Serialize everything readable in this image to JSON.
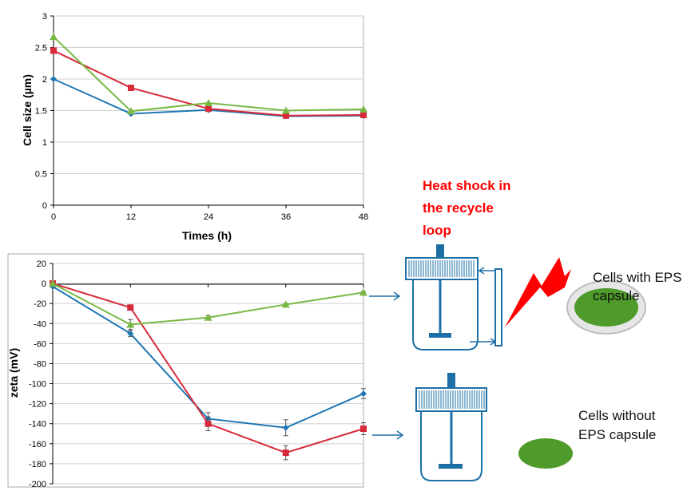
{
  "colors": {
    "blue": "#1F77B4",
    "red": "#D62A3A",
    "green": "#77B943",
    "reactor": "#1E6FA6",
    "heat_text": "#FF0000",
    "bolt": "#FF0000",
    "cell_green": "#4E9A2A",
    "grid": "#D0D0D0"
  },
  "chart_data": [
    {
      "type": "line",
      "title": "",
      "xlabel": "Times (h)",
      "ylabel": "Cell size (µm)",
      "x": [
        0,
        12,
        24,
        36,
        48
      ],
      "xlim": [
        0,
        48
      ],
      "ylim": [
        0,
        3
      ],
      "xticks": [
        "0",
        "12",
        "24",
        "36",
        "48"
      ],
      "yticks": [
        "0",
        "0.5",
        "1",
        "1.5",
        "2",
        "2.5",
        "3"
      ],
      "grid": "horizontal",
      "series": [
        {
          "color": "#1F77B4",
          "marker": "diamond",
          "values": [
            2.0,
            1.45,
            1.51,
            1.41,
            1.42
          ]
        },
        {
          "color": "#D62A3A",
          "marker": "square",
          "values": [
            2.45,
            1.86,
            1.53,
            1.42,
            1.43
          ]
        },
        {
          "color": "#77B943",
          "marker": "triangle",
          "values": [
            2.67,
            1.49,
            1.62,
            1.5,
            1.52
          ]
        }
      ]
    },
    {
      "type": "line",
      "title": "",
      "xlabel": "",
      "ylabel": "zeta (mV)",
      "x": [
        0,
        12,
        24,
        36,
        48
      ],
      "xlim": [
        0,
        48
      ],
      "ylim": [
        -200,
        20
      ],
      "yticks": [
        "20",
        "0",
        "-20",
        "-40",
        "-60",
        "-80",
        "-100",
        "-120",
        "-140",
        "-160",
        "-180",
        "-200"
      ],
      "grid": "horizontal",
      "series": [
        {
          "color": "#1F77B4",
          "marker": "diamond",
          "values": [
            -3,
            -50,
            -135,
            -144,
            -110
          ],
          "error": [
            0,
            3,
            6,
            8,
            5
          ]
        },
        {
          "color": "#D62A3A",
          "marker": "square",
          "values": [
            0,
            -24,
            -140,
            -169,
            -145
          ],
          "error": [
            0,
            2,
            7,
            7,
            6
          ]
        },
        {
          "color": "#77B943",
          "marker": "triangle",
          "values": [
            0,
            -41,
            -34,
            -21,
            -9
          ],
          "error": [
            0,
            5,
            2,
            1,
            1
          ]
        }
      ]
    }
  ],
  "labels": {
    "heat_shock_line1": "Heat shock in",
    "heat_shock_line2": "the recycle",
    "heat_shock_line3": "loop",
    "with_eps_line1": "Cells with EPS",
    "with_eps_line2": "capsule",
    "without_eps_line1": "Cells without",
    "without_eps_line2": "EPS capsule"
  }
}
